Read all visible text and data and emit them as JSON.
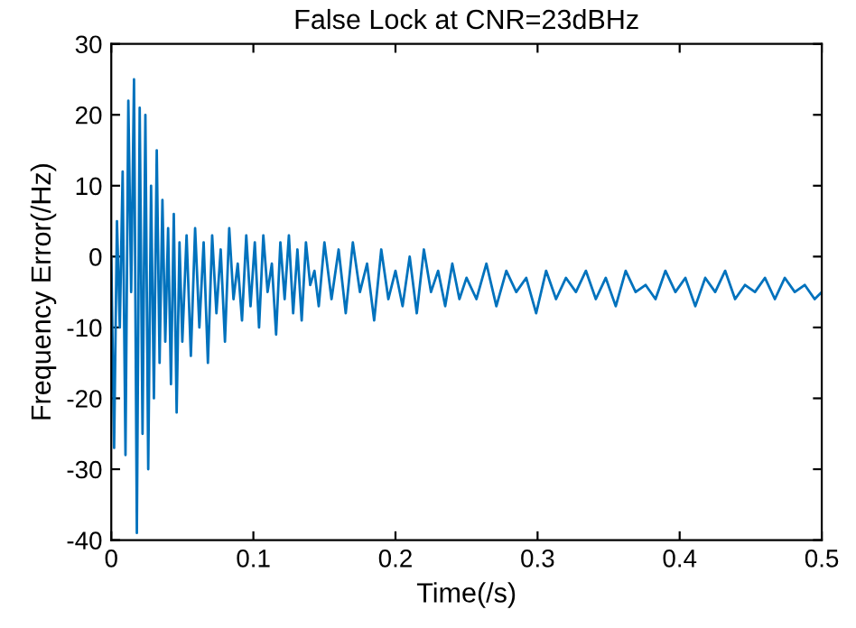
{
  "chart_data": {
    "type": "line",
    "title": "False Lock at CNR=23dBHz",
    "xlabel": "Time(/s)",
    "ylabel": "Frequency Error(/Hz)",
    "xlim": [
      0,
      0.5
    ],
    "ylim": [
      -40,
      30
    ],
    "xticks": [
      0,
      0.1,
      0.2,
      0.3,
      0.4,
      0.5
    ],
    "yticks": [
      -40,
      -30,
      -20,
      -10,
      0,
      10,
      20,
      30
    ],
    "grid": false,
    "series": [
      {
        "color": "#0072bd",
        "x": [
          0,
          0.002,
          0.004,
          0.006,
          0.008,
          0.01,
          0.012,
          0.014,
          0.016,
          0.018,
          0.02,
          0.022,
          0.024,
          0.026,
          0.028,
          0.03,
          0.032,
          0.034,
          0.036,
          0.038,
          0.04,
          0.042,
          0.044,
          0.046,
          0.048,
          0.05,
          0.053,
          0.056,
          0.059,
          0.062,
          0.065,
          0.068,
          0.071,
          0.074,
          0.077,
          0.08,
          0.083,
          0.086,
          0.089,
          0.092,
          0.095,
          0.098,
          0.101,
          0.104,
          0.107,
          0.11,
          0.113,
          0.116,
          0.119,
          0.122,
          0.125,
          0.128,
          0.131,
          0.134,
          0.137,
          0.14,
          0.143,
          0.146,
          0.15,
          0.155,
          0.16,
          0.165,
          0.17,
          0.175,
          0.18,
          0.185,
          0.19,
          0.195,
          0.2,
          0.205,
          0.21,
          0.215,
          0.22,
          0.225,
          0.23,
          0.235,
          0.24,
          0.245,
          0.25,
          0.257,
          0.264,
          0.271,
          0.278,
          0.285,
          0.292,
          0.299,
          0.306,
          0.313,
          0.32,
          0.327,
          0.334,
          0.341,
          0.348,
          0.355,
          0.362,
          0.369,
          0.376,
          0.383,
          0.39,
          0.397,
          0.404,
          0.411,
          0.418,
          0.425,
          0.432,
          0.439,
          0.446,
          0.453,
          0.46,
          0.467,
          0.474,
          0.481,
          0.488,
          0.495,
          0.5
        ],
        "values": [
          0,
          -27,
          5,
          -10,
          12,
          -28,
          22,
          -5,
          25,
          -39,
          21,
          -25,
          20,
          -30,
          10,
          -20,
          15,
          -15,
          8,
          -12,
          4,
          -18,
          6,
          -22,
          2,
          -12,
          3,
          -14,
          4,
          -10,
          2,
          -15,
          3,
          -8,
          1,
          -12,
          4,
          -6,
          -1,
          -9,
          3,
          -7,
          2,
          -10,
          3,
          -5,
          -1,
          -11,
          2,
          -6,
          3,
          -8,
          1,
          -9,
          2,
          -4,
          -2,
          -7,
          2,
          -6,
          1,
          -8,
          2,
          -5,
          -1,
          -9,
          1,
          -6,
          -2,
          -7,
          0,
          -8,
          1,
          -5,
          -2,
          -7,
          -1,
          -6,
          -3,
          -6,
          -1,
          -7,
          -2,
          -5,
          -3,
          -8,
          -2,
          -6,
          -3,
          -5,
          -2,
          -6,
          -3,
          -7,
          -2,
          -5,
          -4,
          -6,
          -2,
          -5,
          -3,
          -7,
          -3,
          -5,
          -2,
          -6,
          -4,
          -5,
          -3,
          -6,
          -3,
          -5,
          -4,
          -6,
          -5
        ]
      }
    ]
  }
}
